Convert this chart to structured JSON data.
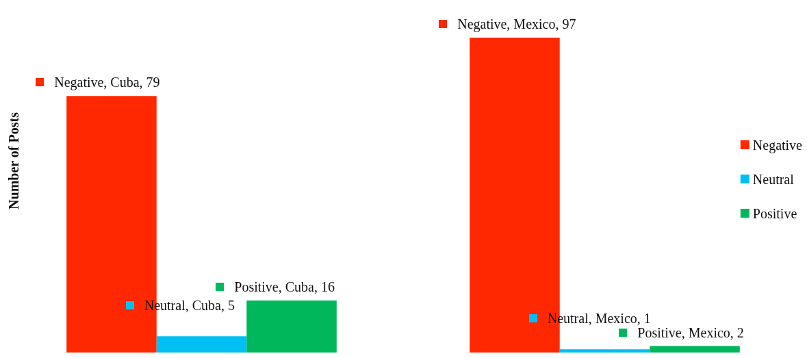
{
  "chart_data": {
    "type": "bar",
    "ylabel": "Number of Posts",
    "categories": [
      null,
      null
    ],
    "legend": "right",
    "series": [
      {
        "name": "Negative",
        "color": "#ff2800",
        "values": [
          79,
          97
        ],
        "value_labels": [
          "Negative, Cuba, 79",
          "Negative, Mexico, 97"
        ]
      },
      {
        "name": "Neutral",
        "color": "#00bff3",
        "values": [
          5,
          1
        ],
        "value_labels": [
          "Neutral, Cuba, 5",
          "Neutral, Mexico, 1"
        ]
      },
      {
        "name": "Positive",
        "color": "#00b85c",
        "values": [
          16,
          2
        ],
        "value_labels": [
          "Positive, Cuba, 16",
          "Positive, Mexico, 2"
        ]
      }
    ]
  }
}
